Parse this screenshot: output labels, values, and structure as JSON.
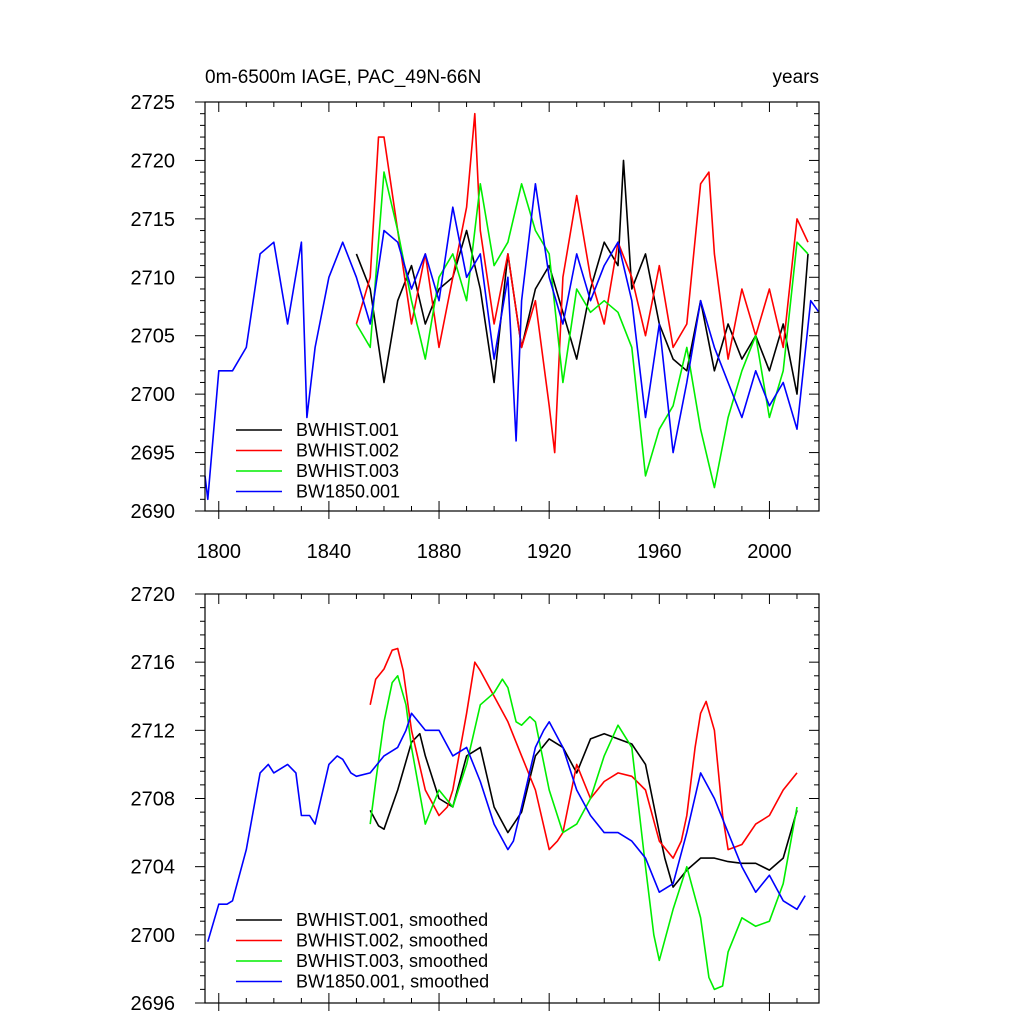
{
  "chart_data": [
    {
      "type": "line",
      "title": "0m-6500m IAGE, PAC_49N-66N",
      "right_title": "years",
      "xlim": [
        1795,
        2018
      ],
      "ylim": [
        2690,
        2725
      ],
      "x_ticks": [
        1800,
        1840,
        1880,
        1920,
        1960,
        2000
      ],
      "x_tick_labels": [
        "1800",
        "1840",
        "1880",
        "1920",
        "1960",
        "2000"
      ],
      "y_ticks": [
        2690,
        2695,
        2700,
        2705,
        2710,
        2715,
        2720,
        2725
      ],
      "y_tick_labels": [
        "2690",
        "2695",
        "2700",
        "2705",
        "2710",
        "2715",
        "2720",
        "2725"
      ],
      "legend_position": "bottom-left",
      "series": [
        {
          "name": "BWHIST.001",
          "color": "#000000",
          "x": [
            1850,
            1855,
            1860,
            1865,
            1870,
            1875,
            1880,
            1885,
            1890,
            1895,
            1900,
            1905,
            1910,
            1915,
            1920,
            1925,
            1930,
            1935,
            1940,
            1945,
            1947,
            1950,
            1955,
            1960,
            1965,
            1970,
            1975,
            1980,
            1985,
            1990,
            1995,
            2000,
            2005,
            2010,
            2014
          ],
          "values": [
            2712,
            2709,
            2701,
            2708,
            2711,
            2706,
            2709,
            2710,
            2714,
            2709,
            2701,
            2712,
            2704,
            2709,
            2711,
            2707,
            2703,
            2709,
            2713,
            2711,
            2720,
            2709,
            2712,
            2706,
            2703,
            2702,
            2708,
            2702,
            2706,
            2703,
            2705,
            2702,
            2706,
            2700,
            2712
          ]
        },
        {
          "name": "BWHIST.002",
          "color": "#ff0000",
          "x": [
            1850,
            1855,
            1858,
            1860,
            1865,
            1870,
            1875,
            1880,
            1885,
            1890,
            1893,
            1895,
            1900,
            1905,
            1910,
            1915,
            1920,
            1922,
            1925,
            1930,
            1935,
            1940,
            1945,
            1950,
            1955,
            1960,
            1965,
            1970,
            1975,
            1978,
            1980,
            1985,
            1990,
            1995,
            2000,
            2005,
            2010,
            2014
          ],
          "values": [
            2706,
            2710,
            2722,
            2722,
            2714,
            2706,
            2712,
            2704,
            2710,
            2716,
            2724,
            2714,
            2706,
            2712,
            2704,
            2708,
            2699,
            2695,
            2710,
            2717,
            2710,
            2706,
            2713,
            2710,
            2705,
            2711,
            2704,
            2706,
            2718,
            2719,
            2712,
            2703,
            2709,
            2705,
            2709,
            2704,
            2715,
            2713
          ]
        },
        {
          "name": "BWHIST.003",
          "color": "#00ee00",
          "x": [
            1850,
            1855,
            1860,
            1865,
            1870,
            1875,
            1880,
            1885,
            1890,
            1895,
            1900,
            1905,
            1910,
            1915,
            1920,
            1925,
            1930,
            1935,
            1940,
            1945,
            1950,
            1955,
            1960,
            1965,
            1970,
            1975,
            1980,
            1985,
            1990,
            1995,
            2000,
            2005,
            2010,
            2014
          ],
          "values": [
            2706,
            2704,
            2719,
            2714,
            2708,
            2703,
            2710,
            2712,
            2708,
            2718,
            2711,
            2713,
            2718,
            2714,
            2712,
            2701,
            2709,
            2707,
            2708,
            2707,
            2704,
            2693,
            2697,
            2699,
            2704,
            2697,
            2692,
            2698,
            2702,
            2705,
            2698,
            2702,
            2713,
            2712
          ]
        },
        {
          "name": "BW1850.001",
          "color": "#0000ff",
          "x": [
            1795,
            1796,
            1800,
            1805,
            1810,
            1815,
            1820,
            1825,
            1830,
            1832,
            1835,
            1840,
            1845,
            1850,
            1855,
            1860,
            1865,
            1870,
            1875,
            1880,
            1885,
            1890,
            1895,
            1900,
            1905,
            1908,
            1910,
            1915,
            1920,
            1925,
            1930,
            1935,
            1940,
            1945,
            1950,
            1955,
            1960,
            1965,
            1970,
            1975,
            1980,
            1985,
            1990,
            1995,
            2000,
            2005,
            2010,
            2015,
            2018
          ],
          "values": [
            2693,
            2691,
            2702,
            2702,
            2704,
            2712,
            2713,
            2706,
            2713,
            2698,
            2704,
            2710,
            2713,
            2710,
            2706,
            2714,
            2713,
            2709,
            2712,
            2708,
            2716,
            2710,
            2712,
            2703,
            2710,
            2696,
            2708,
            2718,
            2710,
            2706,
            2712,
            2708,
            2711,
            2713,
            2708,
            2698,
            2706,
            2695,
            2701,
            2708,
            2704,
            2701,
            2698,
            2702,
            2699,
            2701,
            2697,
            2708,
            2707
          ]
        }
      ]
    },
    {
      "type": "line",
      "title": "",
      "xlim": [
        1795,
        2018
      ],
      "ylim": [
        2696,
        2720
      ],
      "y_ticks": [
        2696,
        2700,
        2704,
        2708,
        2712,
        2716,
        2720
      ],
      "y_tick_labels": [
        "2696",
        "2700",
        "2704",
        "2708",
        "2712",
        "2716",
        "2720"
      ],
      "legend_position": "bottom-left",
      "series": [
        {
          "name": "BWHIST.001, smoothed",
          "color": "#000000",
          "x": [
            1855,
            1858,
            1860,
            1865,
            1870,
            1873,
            1875,
            1880,
            1885,
            1890,
            1895,
            1900,
            1905,
            1910,
            1915,
            1920,
            1925,
            1930,
            1935,
            1940,
            1945,
            1950,
            1955,
            1960,
            1962,
            1965,
            1970,
            1975,
            1980,
            1985,
            1990,
            1995,
            2000,
            2005,
            2010
          ],
          "values": [
            2707.3,
            2706.4,
            2706.2,
            2708.5,
            2711.3,
            2711.8,
            2710.5,
            2708.0,
            2707.5,
            2710.5,
            2711.0,
            2707.5,
            2706.0,
            2707.2,
            2710.5,
            2711.5,
            2711.0,
            2709.5,
            2711.5,
            2711.8,
            2711.5,
            2711.2,
            2710.0,
            2706.0,
            2704.5,
            2702.8,
            2703.8,
            2704.5,
            2704.5,
            2704.3,
            2704.2,
            2704.2,
            2703.8,
            2704.5,
            2707.3
          ]
        },
        {
          "name": "BWHIST.002, smoothed",
          "color": "#ff0000",
          "x": [
            1855,
            1857,
            1860,
            1863,
            1865,
            1867,
            1870,
            1875,
            1880,
            1883,
            1885,
            1890,
            1893,
            1895,
            1900,
            1905,
            1910,
            1915,
            1920,
            1923,
            1925,
            1930,
            1935,
            1940,
            1945,
            1950,
            1955,
            1960,
            1965,
            1968,
            1970,
            1973,
            1975,
            1977,
            1980,
            1983,
            1985,
            1990,
            1995,
            2000,
            2005,
            2010
          ],
          "values": [
            2713.5,
            2715.0,
            2715.6,
            2716.7,
            2716.8,
            2715.5,
            2712.0,
            2708.5,
            2707.0,
            2707.5,
            2708.5,
            2713.0,
            2716.0,
            2715.5,
            2714.0,
            2712.5,
            2710.5,
            2708.5,
            2705.0,
            2705.5,
            2706.0,
            2710.0,
            2708.0,
            2709.0,
            2709.5,
            2709.3,
            2708.5,
            2705.5,
            2704.5,
            2705.5,
            2707.0,
            2711.0,
            2713.0,
            2713.7,
            2712.0,
            2707.0,
            2705.0,
            2705.3,
            2706.5,
            2707.0,
            2708.5,
            2709.5
          ]
        },
        {
          "name": "BWHIST.003, smoothed",
          "color": "#00ee00",
          "x": [
            1855,
            1857,
            1860,
            1863,
            1865,
            1868,
            1870,
            1875,
            1880,
            1885,
            1890,
            1895,
            1900,
            1903,
            1905,
            1908,
            1910,
            1913,
            1915,
            1920,
            1925,
            1930,
            1935,
            1940,
            1945,
            1950,
            1955,
            1958,
            1960,
            1965,
            1970,
            1975,
            1978,
            1980,
            1983,
            1985,
            1990,
            1995,
            2000,
            2005,
            2010
          ],
          "values": [
            2706.5,
            2709.0,
            2712.5,
            2714.8,
            2715.2,
            2713.5,
            2711.0,
            2706.5,
            2708.5,
            2707.5,
            2710.0,
            2713.5,
            2714.2,
            2715.0,
            2714.5,
            2712.5,
            2712.3,
            2712.8,
            2712.5,
            2708.5,
            2706.0,
            2706.5,
            2708.0,
            2710.5,
            2712.3,
            2711.0,
            2704.0,
            2700.0,
            2698.5,
            2701.5,
            2704.0,
            2701.0,
            2697.5,
            2696.8,
            2697.0,
            2699.0,
            2701.0,
            2700.5,
            2700.8,
            2703.0,
            2707.5
          ]
        },
        {
          "name": "BW1850.001, smoothed",
          "color": "#0000ff",
          "x": [
            1796,
            1800,
            1803,
            1805,
            1810,
            1815,
            1818,
            1820,
            1825,
            1828,
            1830,
            1833,
            1835,
            1840,
            1843,
            1845,
            1848,
            1850,
            1855,
            1860,
            1865,
            1868,
            1870,
            1875,
            1880,
            1885,
            1890,
            1895,
            1900,
            1905,
            1907,
            1910,
            1915,
            1918,
            1920,
            1925,
            1930,
            1935,
            1940,
            1945,
            1950,
            1955,
            1960,
            1965,
            1970,
            1975,
            1980,
            1985,
            1990,
            1995,
            2000,
            2005,
            2010,
            2013
          ],
          "values": [
            2699.6,
            2701.8,
            2701.8,
            2702.0,
            2705.0,
            2709.5,
            2710.0,
            2709.5,
            2710.0,
            2709.5,
            2707.0,
            2707.0,
            2706.5,
            2710.0,
            2710.5,
            2710.3,
            2709.5,
            2709.3,
            2709.5,
            2710.5,
            2711.0,
            2712.0,
            2713.0,
            2712.0,
            2712.0,
            2710.5,
            2711.0,
            2709.0,
            2706.5,
            2705.0,
            2705.5,
            2707.5,
            2711.0,
            2712.0,
            2712.5,
            2711.0,
            2708.5,
            2707.0,
            2706.0,
            2706.0,
            2705.5,
            2704.5,
            2702.5,
            2703.0,
            2706.0,
            2709.5,
            2708.0,
            2706.0,
            2704.0,
            2702.5,
            2703.5,
            2702.0,
            2701.5,
            2702.3
          ]
        }
      ]
    }
  ]
}
